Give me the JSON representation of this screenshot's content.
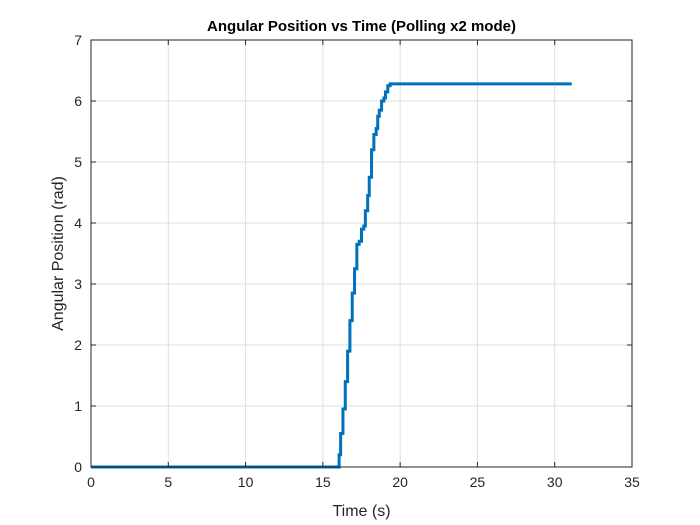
{
  "chart_data": {
    "type": "line",
    "title": "Angular Position vs Time (Polling x2 mode)",
    "xlabel": "Time (s)",
    "ylabel": "Angular Position (rad)",
    "xlim": [
      0,
      35
    ],
    "ylim": [
      0,
      7
    ],
    "xticks": [
      "0",
      "5",
      "10",
      "15",
      "20",
      "25",
      "30",
      "35"
    ],
    "yticks": [
      "0",
      "1",
      "2",
      "3",
      "4",
      "5",
      "6",
      "7"
    ],
    "grid": true,
    "legend": "none",
    "series": [
      {
        "color": "#0072BD",
        "x": [
          0,
          15.95,
          16.05,
          16.15,
          16.3,
          16.45,
          16.6,
          16.75,
          16.9,
          17.05,
          17.2,
          17.35,
          17.5,
          17.65,
          17.75,
          17.9,
          18.0,
          18.15,
          18.3,
          18.45,
          18.55,
          18.65,
          18.8,
          18.95,
          19.05,
          19.2,
          19.35,
          31.1
        ],
        "y": [
          0,
          0,
          0.2,
          0.55,
          0.95,
          1.4,
          1.9,
          2.4,
          2.85,
          3.25,
          3.65,
          3.7,
          3.9,
          3.95,
          4.2,
          4.45,
          4.75,
          5.2,
          5.45,
          5.55,
          5.75,
          5.85,
          6.0,
          6.05,
          6.15,
          6.25,
          6.28,
          6.28
        ]
      }
    ]
  }
}
